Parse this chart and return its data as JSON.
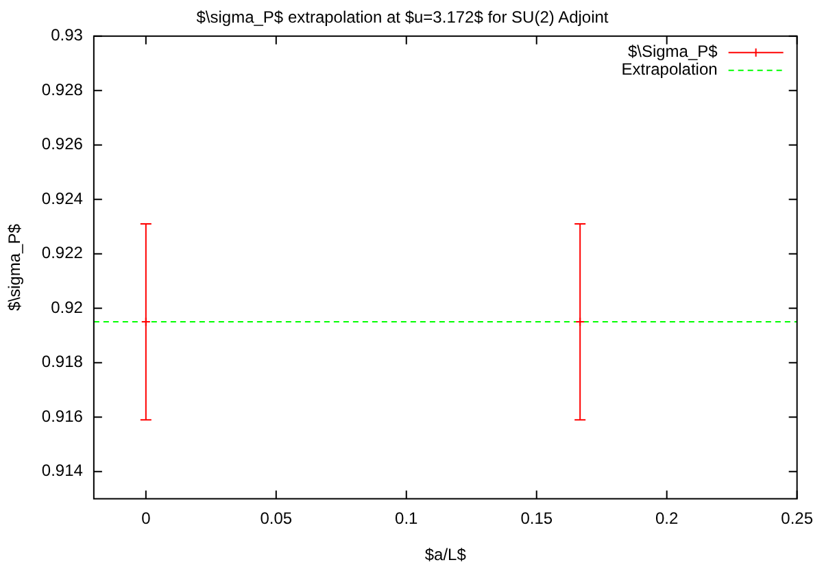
{
  "chart_data": {
    "type": "scatter",
    "title": "$\\sigma_P$ extrapolation at $u=3.172$ for SU(2) Adjoint",
    "xlabel": "$a/L$",
    "ylabel": "$\\sigma_P$",
    "series": [
      {
        "name": "$\\Sigma_P$",
        "marker": "cross",
        "color": "#ff0000",
        "x": [
          0,
          0.1667
        ],
        "values": [
          0.9195,
          0.9195
        ],
        "errors": [
          0.0036,
          0.0036
        ]
      },
      {
        "name": "Extrapolation",
        "type": "line",
        "color": "#00ff00",
        "line_style": "dashed",
        "x": [
          -0.02,
          0.25
        ],
        "values": [
          0.9195,
          0.9195
        ]
      }
    ],
    "xlim": [
      -0.02,
      0.25
    ],
    "xticks": [
      0,
      0.05,
      0.1,
      0.15,
      0.2,
      0.25
    ],
    "ylim": [
      0.913,
      0.93
    ],
    "yticks": [
      0.914,
      0.916,
      0.918,
      0.92,
      0.922,
      0.924,
      0.926,
      0.928,
      0.93
    ],
    "legend": "top right",
    "grid": false
  }
}
